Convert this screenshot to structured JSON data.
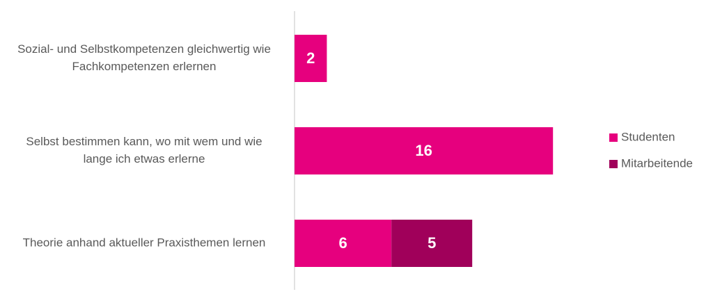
{
  "chart_data": {
    "type": "bar",
    "orientation": "horizontal",
    "stacked": true,
    "categories": [
      [
        "Sozial- und Selbstkompetenzen gleichwertig wie",
        "Fachkompetenzen erlernen"
      ],
      [
        "Selbst bestimmen kann, wo mit wem und wie",
        "lange ich etwas erlerne"
      ],
      [
        "Theorie anhand aktueller Praxisthemen lernen"
      ]
    ],
    "series": [
      {
        "name": "Studenten",
        "color": "#e6007e",
        "values": [
          2,
          16,
          6
        ]
      },
      {
        "name": "Mitarbeitende",
        "color": "#a0005a",
        "values": [
          null,
          null,
          5
        ]
      }
    ],
    "xlim": [
      0,
      20
    ],
    "grid": false,
    "legend_position": "right"
  }
}
